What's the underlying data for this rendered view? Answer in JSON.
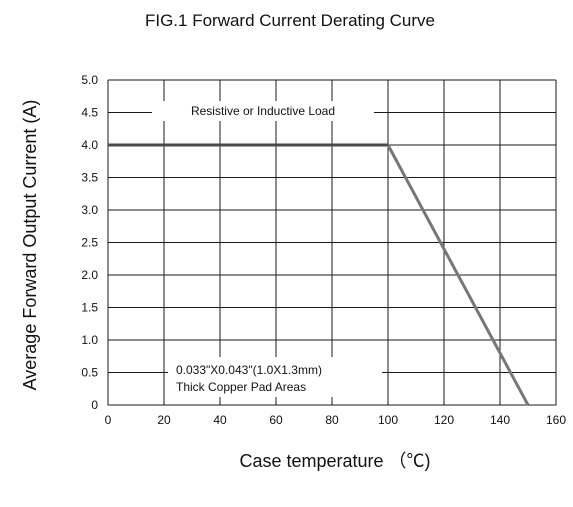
{
  "chart_data": {
    "type": "line",
    "title": "FIG.1 Forward Current Derating Curve",
    "xlabel": "Case temperature （℃)",
    "ylabel": "Average Forward Output Current (A)",
    "xlim": [
      0,
      160
    ],
    "ylim": [
      0,
      5.0
    ],
    "x_ticks": [
      "0",
      "20",
      "40",
      "60",
      "80",
      "100",
      "120",
      "140",
      "160"
    ],
    "y_ticks": [
      "0",
      "0.5",
      "1.0",
      "1.5",
      "2.0",
      "2.5",
      "3.0",
      "3.5",
      "4.0",
      "4.5",
      "5.0"
    ],
    "grid": true,
    "series": [
      {
        "name": "",
        "x": [
          0,
          100,
          150
        ],
        "y": [
          4.0,
          4.0,
          0
        ]
      }
    ],
    "annotations": {
      "load": "Resistive or Inductive Load",
      "pad_line1": "0.033\"X0.043\"(1.0X1.3mm)",
      "pad_line2": "Thick Copper Pad Areas"
    },
    "colors": {
      "curve": "#777777",
      "grid": "#1a1a1a",
      "text": "#111111"
    }
  }
}
